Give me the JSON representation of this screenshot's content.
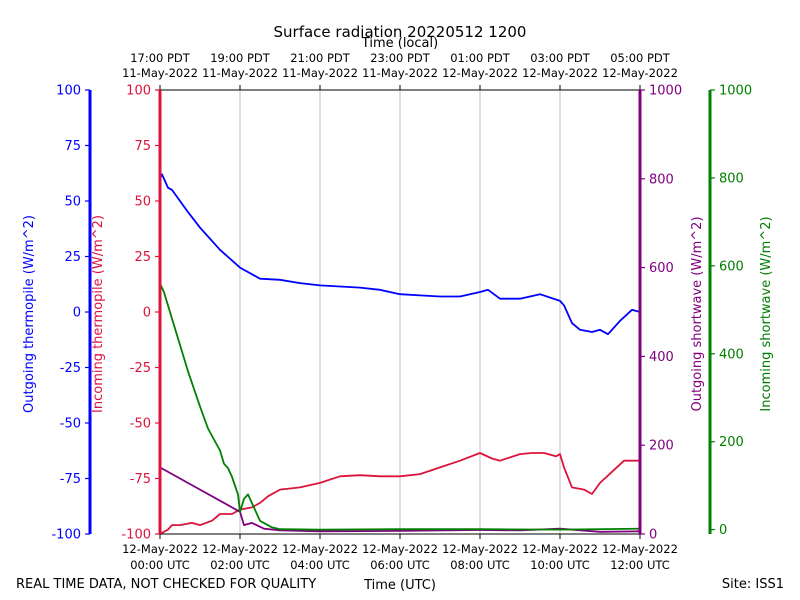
{
  "chart_data": {
    "type": "line",
    "title": "Surface radiation 20220512 1200",
    "top_xlabel": "Time (local)",
    "xlabel": "Time (UTC)",
    "footer_left": "REAL TIME DATA, NOT CHECKED FOR QUALITY",
    "footer_right": "Site: ISS1",
    "x_range_hours_utc": [
      0,
      12
    ],
    "x_ticks_utc": [
      {
        "hour": 0,
        "line1": "12-May-2022",
        "line2": "00:00 UTC"
      },
      {
        "hour": 2,
        "line1": "12-May-2022",
        "line2": "02:00 UTC"
      },
      {
        "hour": 4,
        "line1": "12-May-2022",
        "line2": "04:00 UTC"
      },
      {
        "hour": 6,
        "line1": "12-May-2022",
        "line2": "06:00 UTC"
      },
      {
        "hour": 8,
        "line1": "12-May-2022",
        "line2": "08:00 UTC"
      },
      {
        "hour": 10,
        "line1": "12-May-2022",
        "line2": "10:00 UTC"
      },
      {
        "hour": 12,
        "line1": "12-May-2022",
        "line2": "12:00 UTC"
      }
    ],
    "x_ticks_local": [
      {
        "hour": 0,
        "line1": "17:00 PDT",
        "line2": "11-May-2022"
      },
      {
        "hour": 2,
        "line1": "19:00 PDT",
        "line2": "11-May-2022"
      },
      {
        "hour": 4,
        "line1": "21:00 PDT",
        "line2": "11-May-2022"
      },
      {
        "hour": 6,
        "line1": "23:00 PDT",
        "line2": "11-May-2022"
      },
      {
        "hour": 8,
        "line1": "01:00 PDT",
        "line2": "12-May-2022"
      },
      {
        "hour": 10,
        "line1": "03:00 PDT",
        "line2": "12-May-2022"
      },
      {
        "hour": 12,
        "line1": "05:00 PDT",
        "line2": "12-May-2022"
      }
    ],
    "axes": [
      {
        "id": "out_thermo",
        "label": "Outgoing thermopile (W/m^2)",
        "color": "#0000ff",
        "side": "left-outer",
        "ylim": [
          -100,
          100
        ],
        "ticks": [
          "-100",
          "-75",
          "-50",
          "-25",
          "0",
          "25",
          "50",
          "75",
          "100"
        ]
      },
      {
        "id": "in_thermo",
        "label": "Incoming thermopile (W/m^2)",
        "color": "#dc143c",
        "side": "left-inner",
        "ylim": [
          -100,
          100
        ],
        "ticks": [
          "-100",
          "-75",
          "-50",
          "-25",
          "0",
          "25",
          "50",
          "75",
          "100"
        ]
      },
      {
        "id": "out_sw",
        "label": "Outgoing shortwave (W/m^2)",
        "color": "#800080",
        "side": "right-inner",
        "ylim": [
          0,
          1000
        ],
        "ticks": [
          "0",
          "200",
          "400",
          "600",
          "800",
          "1000"
        ]
      },
      {
        "id": "in_sw",
        "label": "Incoming shortwave (W/m^2)",
        "color": "#008000",
        "side": "right-outer",
        "ylim": [
          -10,
          1000
        ],
        "ticks": [
          "0",
          "200",
          "400",
          "600",
          "800",
          "1000"
        ]
      }
    ],
    "series": [
      {
        "name": "Outgoing thermopile",
        "axis": "out_thermo",
        "color": "#0000ff",
        "x": [
          0,
          0.05,
          0.2,
          0.3,
          0.5,
          0.7,
          1.0,
          1.5,
          2.0,
          2.5,
          3.0,
          3.5,
          4.0,
          5.0,
          5.5,
          6.0,
          6.5,
          7.0,
          7.5,
          8.0,
          8.2,
          8.5,
          9.0,
          9.5,
          10.0,
          10.1,
          10.3,
          10.5,
          10.8,
          11.0,
          11.2,
          11.5,
          11.8,
          12.0
        ],
        "values": [
          60,
          62,
          56,
          55,
          50,
          45,
          38,
          28,
          20,
          15,
          14.5,
          13,
          12,
          11,
          10,
          8,
          7.5,
          7,
          7,
          9,
          10,
          6,
          6,
          8,
          5,
          3,
          -5,
          -8,
          -9,
          -8,
          -10,
          -4,
          1,
          0
        ]
      },
      {
        "name": "Incoming thermopile",
        "axis": "in_thermo",
        "color": "#dc143c",
        "x": [
          0,
          0.2,
          0.3,
          0.5,
          0.8,
          1.0,
          1.3,
          1.5,
          1.8,
          2.0,
          2.3,
          2.5,
          2.7,
          3.0,
          3.5,
          4.0,
          4.5,
          5.0,
          5.5,
          6.0,
          6.5,
          7.0,
          7.5,
          8.0,
          8.3,
          8.5,
          9.0,
          9.3,
          9.6,
          9.9,
          10.0,
          10.1,
          10.3,
          10.6,
          10.8,
          11.0,
          11.3,
          11.6,
          12.0
        ],
        "values": [
          -100,
          -98,
          -96,
          -96,
          -95,
          -96,
          -94,
          -91,
          -91,
          -89,
          -88,
          -86,
          -83,
          -80,
          -79,
          -77,
          -74,
          -73.5,
          -74,
          -74,
          -73,
          -70,
          -67,
          -63.5,
          -66,
          -67,
          -64,
          -63.5,
          -63.5,
          -65,
          -64,
          -70,
          -79,
          -80,
          -82,
          -77,
          -72,
          -67,
          -67
        ]
      },
      {
        "name": "Outgoing shortwave",
        "axis": "out_sw",
        "color": "#800080",
        "x": [
          0,
          0.5,
          1.0,
          1.5,
          1.8,
          2.0,
          2.1,
          2.3,
          2.6,
          3.0,
          4.0,
          6.0,
          8.0,
          9.0,
          10.0,
          11.0,
          12.0
        ],
        "values": [
          150,
          125,
          100,
          75,
          60,
          50,
          20,
          25,
          12,
          8,
          6,
          7,
          9,
          8,
          12,
          5,
          6
        ]
      },
      {
        "name": "Incoming shortwave",
        "axis": "in_sw",
        "color": "#008000",
        "x": [
          0,
          0.1,
          0.3,
          0.5,
          0.7,
          1.0,
          1.2,
          1.5,
          1.6,
          1.7,
          1.8,
          1.95,
          2.0,
          2.1,
          2.2,
          2.3,
          2.5,
          2.8,
          3.0,
          4.0,
          6.0,
          8.0,
          10.0,
          12.0
        ],
        "values": [
          560,
          540,
          480,
          420,
          360,
          280,
          230,
          180,
          150,
          140,
          120,
          80,
          40,
          70,
          80,
          60,
          20,
          5,
          1,
          0,
          1,
          1,
          0,
          2
        ]
      }
    ]
  }
}
